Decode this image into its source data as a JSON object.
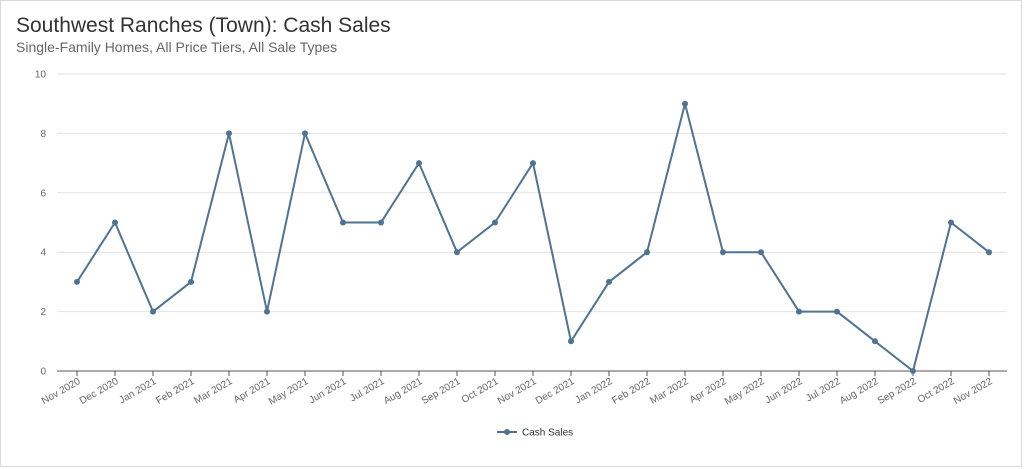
{
  "title": "Southwest Ranches (Town): Cash Sales",
  "subtitle": "Single-Family Homes, All Price Tiers, All Sale Types",
  "chart_data": {
    "type": "line",
    "title": "Southwest Ranches (Town): Cash Sales",
    "subtitle": "Single-Family Homes, All Price Tiers, All Sale Types",
    "xlabel": "",
    "ylabel": "",
    "ylim": [
      0,
      10
    ],
    "yticks": [
      0,
      2,
      4,
      6,
      8,
      10
    ],
    "grid": true,
    "legend_position": "bottom-center",
    "categories": [
      "Nov 2020",
      "Dec 2020",
      "Jan 2021",
      "Feb 2021",
      "Mar 2021",
      "Apr 2021",
      "May 2021",
      "Jun 2021",
      "Jul 2021",
      "Aug 2021",
      "Sep 2021",
      "Oct 2021",
      "Nov 2021",
      "Dec 2021",
      "Jan 2022",
      "Feb 2022",
      "Mar 2022",
      "Apr 2022",
      "May 2022",
      "Jun 2022",
      "Jul 2022",
      "Aug 2022",
      "Sep 2022",
      "Oct 2022",
      "Nov 2022"
    ],
    "series": [
      {
        "name": "Cash Sales",
        "color": "#4e7393",
        "values": [
          3,
          5,
          2,
          3,
          8,
          2,
          8,
          5,
          5,
          7,
          4,
          5,
          7,
          1,
          3,
          4,
          9,
          4,
          4,
          2,
          2,
          1,
          0,
          5,
          4
        ]
      }
    ]
  }
}
